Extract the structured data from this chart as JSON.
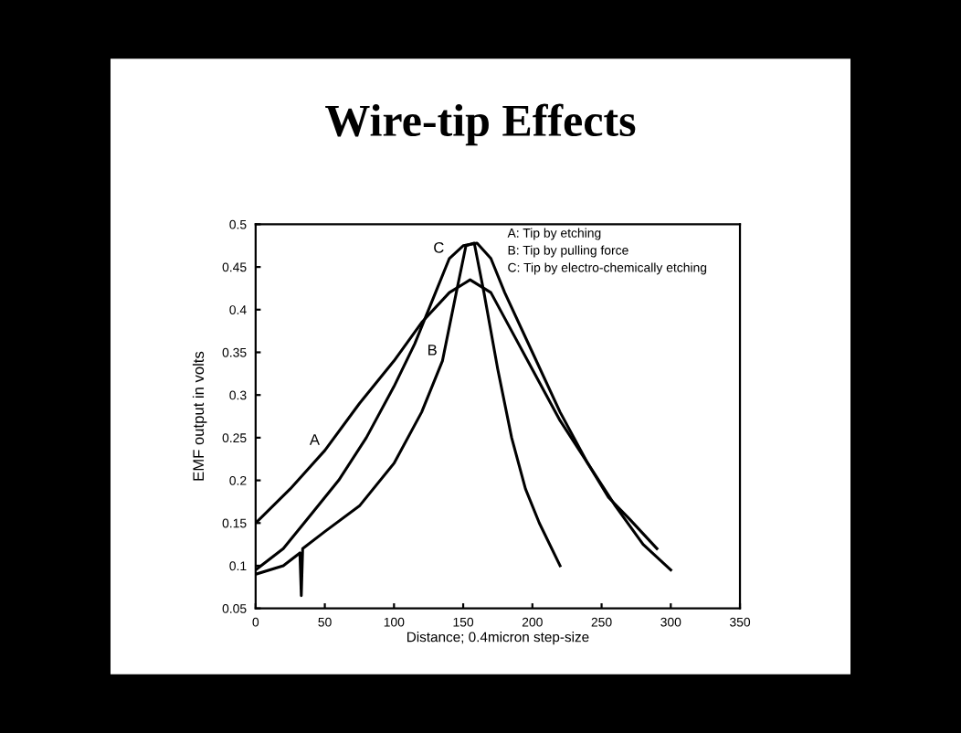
{
  "chart_data": {
    "type": "line",
    "title": "Wire-tip Effects",
    "xlabel": "Distance; 0.4micron step-size",
    "ylabel": "EMF output in volts",
    "annotations": [
      "A: Tip by etching",
      "B: Tip by pulling force",
      "C: Tip by electro-chemically etching"
    ],
    "series": [
      {
        "name": "A",
        "color": "#000000",
        "x": [
          0,
          25,
          50,
          75,
          100,
          120,
          140,
          155,
          170,
          180,
          200,
          220,
          240,
          255,
          270,
          290
        ],
        "values": [
          0.15,
          0.19,
          0.235,
          0.29,
          0.34,
          0.385,
          0.42,
          0.435,
          0.42,
          0.39,
          0.33,
          0.27,
          0.22,
          0.18,
          0.155,
          0.12
        ]
      },
      {
        "name": "B",
        "color": "#000000",
        "x": [
          0,
          20,
          32,
          33,
          34,
          50,
          75,
          100,
          120,
          135,
          145,
          152,
          158,
          165,
          175,
          185,
          195,
          205,
          220
        ],
        "values": [
          0.09,
          0.1,
          0.115,
          0.065,
          0.12,
          0.14,
          0.17,
          0.22,
          0.28,
          0.34,
          0.42,
          0.475,
          0.478,
          0.42,
          0.33,
          0.25,
          0.19,
          0.15,
          0.1
        ]
      },
      {
        "name": "C",
        "color": "#000000",
        "x": [
          0,
          20,
          40,
          60,
          80,
          100,
          115,
          130,
          140,
          150,
          160,
          170,
          180,
          200,
          220,
          240,
          260,
          280,
          300
        ],
        "values": [
          0.095,
          0.12,
          0.16,
          0.2,
          0.25,
          0.31,
          0.36,
          0.42,
          0.46,
          0.475,
          0.478,
          0.46,
          0.42,
          0.35,
          0.28,
          0.22,
          0.17,
          0.125,
          0.095
        ]
      }
    ],
    "xlim": [
      0,
      350
    ],
    "xticks": [
      0,
      50,
      100,
      150,
      200,
      250,
      300,
      350
    ],
    "ylim": [
      0.05,
      0.5
    ],
    "yticks": [
      0.05,
      0.1,
      0.15,
      0.2,
      0.25,
      0.3,
      0.35,
      0.4,
      0.45,
      0.5
    ],
    "grid": false,
    "legend": false,
    "marker": "none",
    "line_style": "solid"
  }
}
